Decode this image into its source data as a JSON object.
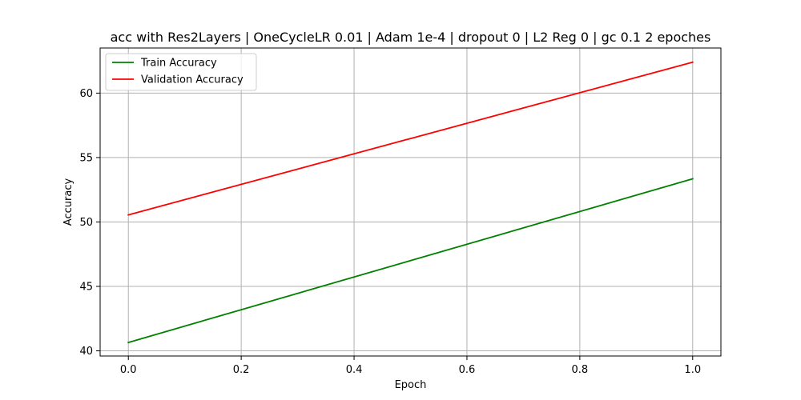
{
  "chart_data": {
    "type": "line",
    "title": "acc with Res2Layers | OneCycleLR 0.01 | Adam 1e-4 | dropout 0 | L2 Reg 0 | gc 0.1 2 epoches",
    "xlabel": "Epoch",
    "ylabel": "Accuracy",
    "x": [
      0.0,
      1.0
    ],
    "xlim": [
      -0.05,
      1.05
    ],
    "ylim": [
      39.6,
      63.5
    ],
    "xticks": [
      0.0,
      0.2,
      0.4,
      0.6,
      0.8,
      1.0
    ],
    "xtick_labels": [
      "0.0",
      "0.2",
      "0.4",
      "0.6",
      "0.8",
      "1.0"
    ],
    "yticks": [
      40,
      45,
      50,
      55,
      60
    ],
    "ytick_labels": [
      "40",
      "45",
      "50",
      "55",
      "60"
    ],
    "grid": true,
    "legend_position": "top-left",
    "series": [
      {
        "name": "Train Accuracy",
        "color": "#008000",
        "values": [
          40.65,
          53.35
        ]
      },
      {
        "name": "Validation Accuracy",
        "color": "#ff0000",
        "values": [
          50.55,
          62.4
        ]
      }
    ]
  }
}
